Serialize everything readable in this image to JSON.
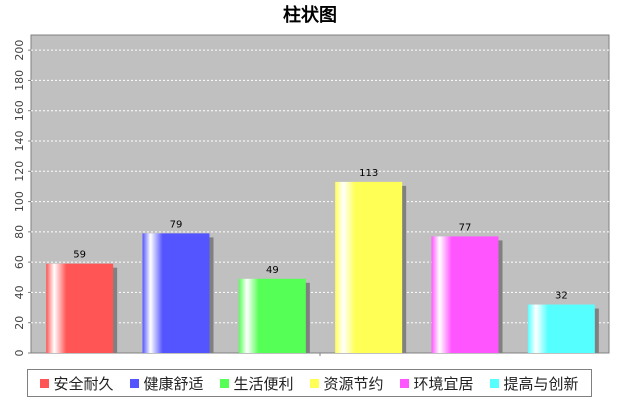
{
  "chart_data": {
    "type": "bar",
    "title": "柱状图",
    "categories": [
      "安全耐久",
      "健康舒适",
      "生活便利",
      "资源节约",
      "环境宜居",
      "提高与创新"
    ],
    "values": [
      59,
      79,
      49,
      113,
      77,
      32
    ],
    "colors": [
      "#ff5555",
      "#5555ff",
      "#55ff55",
      "#ffff55",
      "#ff55ff",
      "#55ffff"
    ],
    "ylim": [
      0,
      210
    ],
    "yticks": [
      0,
      20,
      40,
      60,
      80,
      100,
      120,
      140,
      160,
      180,
      200
    ],
    "grid": true,
    "legend_position": "bottom",
    "plot_background": "#c0c0c0"
  }
}
